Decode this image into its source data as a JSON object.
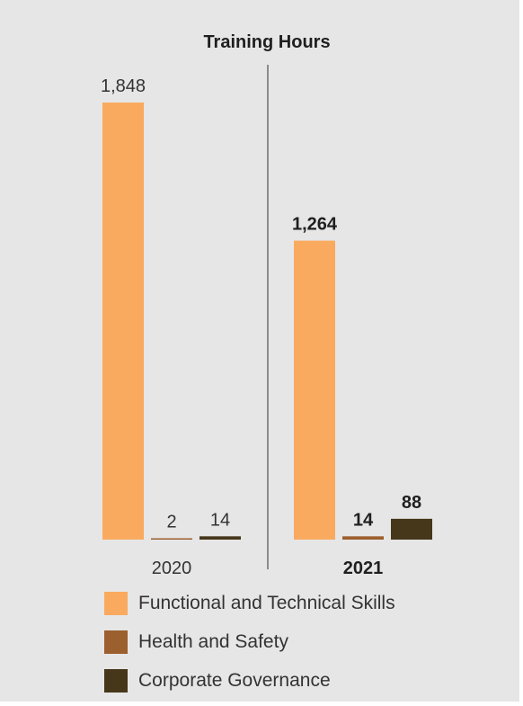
{
  "colors": {
    "background": "#e6e6e6",
    "functional": "#f9aa5f",
    "health": "#9c5f2e",
    "governance": "#46361a",
    "divider": "#333333",
    "text": "#333333",
    "bold_text": "#1f1f1f"
  },
  "chart_data": {
    "type": "bar",
    "title": "Training Hours",
    "grouping": "year panels separated by a vertical divider",
    "categories": [
      "2020",
      "2021"
    ],
    "series": [
      {
        "name": "Functional and Technical Skills",
        "values": [
          1848,
          1264
        ],
        "labels": [
          "1,848",
          "1,264"
        ],
        "color": "#f9aa5f"
      },
      {
        "name": "Health and Safety",
        "values": [
          2,
          14
        ],
        "labels": [
          "2",
          "14"
        ],
        "color": "#9c5f2e"
      },
      {
        "name": "Corporate Governance",
        "values": [
          14,
          88
        ],
        "labels": [
          "14",
          "88"
        ],
        "color": "#46361a"
      }
    ],
    "emphasized_category": "2021",
    "ylim": [
      0,
      1848
    ],
    "axes_visible": false,
    "legend": "bottom"
  }
}
